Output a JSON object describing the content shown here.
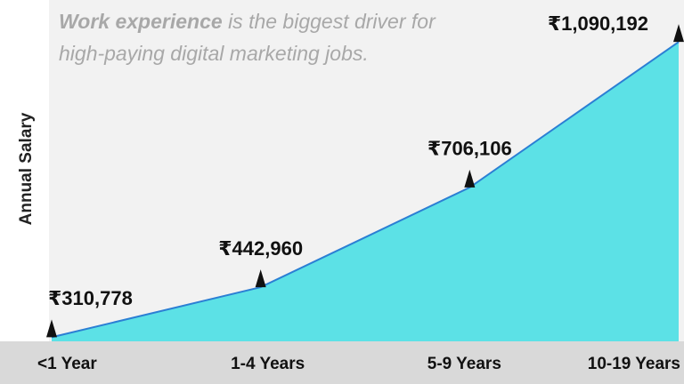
{
  "chart_data": {
    "type": "area",
    "title_emphasis": "Work experience",
    "title": "is the biggest driver for high-paying digital marketing jobs.",
    "y_label": "Annual Salary",
    "categories": [
      "<1 Year",
      "1-4 Years",
      "5-9 Years",
      "10-19 Years"
    ],
    "values": [
      310778,
      442960,
      706106,
      1090192
    ],
    "value_labels": [
      "₹310,778",
      "₹442,960",
      "₹706,106",
      "₹1,090,192"
    ],
    "color": "#5ce1e6",
    "line_color": "#2b7fd4",
    "ylim": [
      300000,
      1100000
    ]
  }
}
